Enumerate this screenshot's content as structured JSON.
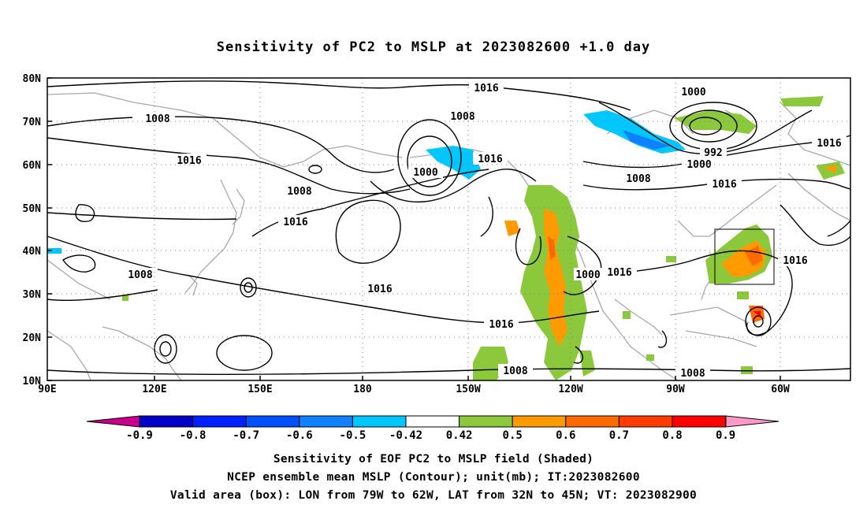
{
  "title": "Sensitivity of PC2 to MSLP at 2023082600 +1.0 day",
  "map": {
    "lat_labels": [
      "80N",
      "70N",
      "60N",
      "50N",
      "40N",
      "30N",
      "20N",
      "10N"
    ],
    "lon_labels": [
      "90E",
      "120E",
      "150E",
      "180",
      "150W",
      "120W",
      "90W",
      "60W"
    ],
    "contour_labels": [
      "1016",
      "1008",
      "1000",
      "1008",
      "1016",
      "1000",
      "992",
      "1000",
      "1008",
      "1016",
      "1016",
      "1008",
      "1016",
      "1008",
      "1016",
      "1016",
      "1000",
      "1016",
      "1016",
      "1008",
      "1008"
    ],
    "valid_box": {
      "lon_from": "79W",
      "lon_to": "62W",
      "lat_from": "32N",
      "lat_to": "45N"
    }
  },
  "colorbar": {
    "labels": [
      "-0.9",
      "-0.8",
      "-0.7",
      "-0.6",
      "-0.5",
      "-0.42",
      "0.42",
      "0.5",
      "0.6",
      "0.7",
      "0.8",
      "0.9"
    ],
    "colors": [
      "#0000c8",
      "#0020ff",
      "#0050ff",
      "#1080ff",
      "#00c8ff",
      "#ffffff",
      "#8cc83c",
      "#ff9a00",
      "#ff6a00",
      "#ff3c00",
      "#ff0000"
    ],
    "low_end_color": "#c8008c",
    "high_end_color": "#ff9ac8"
  },
  "captions": {
    "line1": "Sensitivity of EOF PC2 to MSLP field (Shaded)",
    "line2": "NCEP ensemble mean MSLP (Contour); unit(mb); IT:2023082600",
    "line3": "Valid area (box): LON from 79W to 62W, LAT from 32N to 45N; VT: 2023082900"
  }
}
